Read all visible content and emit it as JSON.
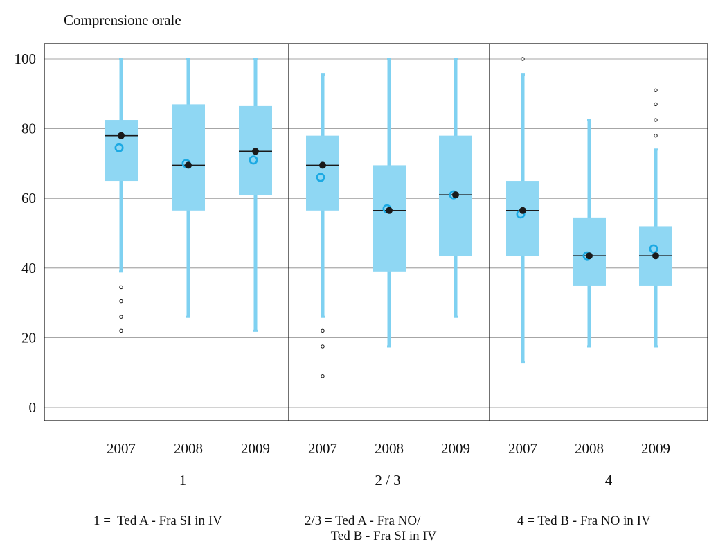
{
  "chart_data": {
    "type": "boxplot",
    "title": "Comprensione orale",
    "ylim": [
      0,
      100
    ],
    "yticks": [
      0,
      20,
      40,
      60,
      80,
      100
    ],
    "grid": true,
    "colors": {
      "box": "#8fd7f3",
      "whisker": "#7fd1f1",
      "mean": "#1ba9e3",
      "median": "#1a1a1a"
    },
    "groups": [
      {
        "label": "1",
        "legend": "1 =  Ted A - Fra SI in IV",
        "boxes": [
          {
            "x": "2007",
            "min": 39,
            "q1": 65,
            "median": 78,
            "q3": 82.5,
            "max": 100,
            "median_point": 78,
            "mean": 74.5,
            "outliers": [
              34.5,
              30.5,
              26,
              22
            ]
          },
          {
            "x": "2008",
            "min": 26,
            "q1": 56.5,
            "median": 69.5,
            "q3": 87,
            "max": 100,
            "median_point": 69.5,
            "mean": 70,
            "outliers": []
          },
          {
            "x": "2009",
            "min": 22,
            "q1": 61,
            "median": 73.5,
            "q3": 86.5,
            "max": 100,
            "median_point": 73.5,
            "mean": 71,
            "outliers": []
          }
        ]
      },
      {
        "label": "2 / 3",
        "legend": "2/3 = Ted A - Fra NO/\n        Ted B - Fra SI in IV",
        "boxes": [
          {
            "x": "2007",
            "min": 26,
            "q1": 56.5,
            "median": 69.5,
            "q3": 78,
            "max": 95.5,
            "median_point": 69.5,
            "mean": 66,
            "outliers": [
              22,
              17.5,
              9
            ]
          },
          {
            "x": "2008",
            "min": 17.5,
            "q1": 39,
            "median": 56.5,
            "q3": 69.5,
            "max": 100,
            "median_point": 56.5,
            "mean": 57,
            "outliers": []
          },
          {
            "x": "2009",
            "min": 26,
            "q1": 43.5,
            "median": 61,
            "q3": 78,
            "max": 100,
            "median_point": 61,
            "mean": 61,
            "outliers": []
          }
        ]
      },
      {
        "label": "4",
        "legend": "4 = Ted B - Fra NO in IV",
        "boxes": [
          {
            "x": "2007",
            "min": 13,
            "q1": 43.5,
            "median": 56.5,
            "q3": 65,
            "max": 95.5,
            "median_point": 56.5,
            "mean": 55.5,
            "outliers": [
              100
            ]
          },
          {
            "x": "2008",
            "min": 17.5,
            "q1": 35,
            "median": 43.5,
            "q3": 54.5,
            "max": 82.5,
            "median_point": 43.5,
            "mean": 43.5,
            "outliers": []
          },
          {
            "x": "2009",
            "min": 17.5,
            "q1": 35,
            "median": 43.5,
            "q3": 52,
            "max": 74,
            "median_point": 43.5,
            "mean": 45.5,
            "outliers": [
              91,
              87,
              82.5,
              78
            ]
          }
        ]
      }
    ]
  }
}
